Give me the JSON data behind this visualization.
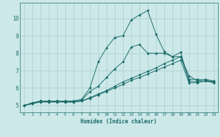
{
  "xlabel": "Humidex (Indice chaleur)",
  "ylabel": "",
  "xlim": [
    -0.5,
    23.5
  ],
  "ylim": [
    4.6,
    10.9
  ],
  "background_color": "#cce8e8",
  "line_color": "#1a6b6b",
  "grid_color": "#aacccc",
  "x_ticks": [
    0,
    1,
    2,
    3,
    4,
    5,
    6,
    7,
    8,
    9,
    10,
    11,
    12,
    13,
    14,
    15,
    16,
    17,
    18,
    19,
    20,
    21,
    22,
    23
  ],
  "y_ticks": [
    5,
    6,
    7,
    8,
    9,
    10
  ],
  "lines": [
    {
      "x": [
        0,
        1,
        2,
        3,
        4,
        5,
        6,
        7,
        8,
        9,
        10,
        11,
        12,
        13,
        14,
        15,
        16,
        17,
        18,
        19,
        20,
        21,
        22,
        23
      ],
      "y": [
        5.0,
        5.15,
        5.25,
        5.25,
        5.25,
        5.25,
        5.25,
        5.35,
        6.0,
        7.5,
        8.3,
        8.9,
        9.0,
        9.9,
        10.2,
        10.45,
        9.1,
        8.1,
        7.8,
        7.8,
        6.5,
        6.5,
        6.45,
        6.35
      ]
    },
    {
      "x": [
        0,
        1,
        2,
        3,
        4,
        5,
        6,
        7,
        8,
        9,
        10,
        11,
        12,
        13,
        14,
        15,
        16,
        17,
        18,
        19,
        20,
        21,
        22,
        23
      ],
      "y": [
        5.0,
        5.1,
        5.25,
        5.25,
        5.25,
        5.2,
        5.2,
        5.3,
        5.8,
        6.1,
        6.6,
        7.1,
        7.5,
        8.35,
        8.5,
        8.0,
        8.0,
        8.0,
        7.8,
        8.05,
        6.4,
        6.35,
        6.4,
        6.35
      ]
    },
    {
      "x": [
        0,
        1,
        2,
        3,
        4,
        5,
        6,
        7,
        8,
        9,
        10,
        11,
        12,
        13,
        14,
        15,
        16,
        17,
        18,
        19,
        20,
        21,
        22,
        23
      ],
      "y": [
        5.0,
        5.1,
        5.2,
        5.2,
        5.2,
        5.2,
        5.2,
        5.25,
        5.45,
        5.65,
        5.85,
        6.1,
        6.35,
        6.55,
        6.75,
        6.95,
        7.15,
        7.4,
        7.6,
        7.8,
        6.7,
        6.4,
        6.5,
        6.4
      ]
    },
    {
      "x": [
        0,
        1,
        2,
        3,
        4,
        5,
        6,
        7,
        8,
        9,
        10,
        11,
        12,
        13,
        14,
        15,
        16,
        17,
        18,
        19,
        20,
        21,
        22,
        23
      ],
      "y": [
        5.0,
        5.1,
        5.2,
        5.2,
        5.2,
        5.2,
        5.2,
        5.25,
        5.4,
        5.6,
        5.8,
        6.0,
        6.2,
        6.45,
        6.6,
        6.8,
        7.0,
        7.2,
        7.4,
        7.6,
        6.3,
        6.3,
        6.4,
        6.3
      ]
    }
  ]
}
